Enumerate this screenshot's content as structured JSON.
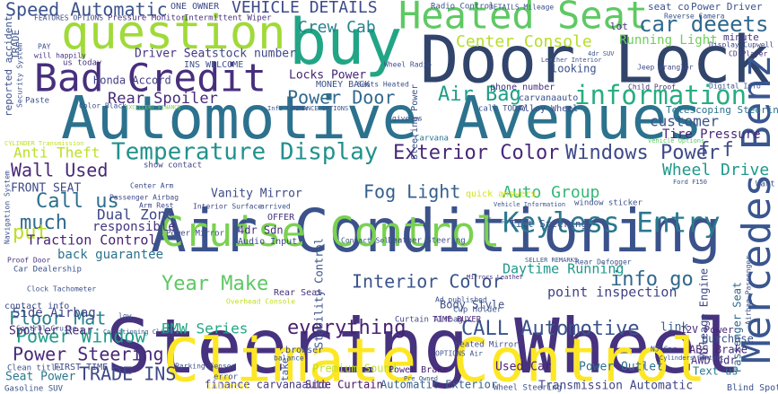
{
  "words": [
    "Steering Wheel",
    "Air Conditioning",
    "Automotive Avenues",
    "Climate Control",
    "Door Lock",
    "buy",
    "Heated Seat",
    "question",
    "Bad Credit",
    "Mercedes Benz",
    "Cruise Control",
    "Keyless Entry",
    "information",
    "Temperature Display",
    "Exterior Color",
    "Windows Power",
    "Center Console",
    "car deeets",
    "Speed Automatic",
    "VEHICLE DETAILS",
    "Crew Cab",
    "Running Light",
    "Air Bag",
    "Power Door",
    "Rear Spoiler",
    "Honda Accord",
    "Driver Seat",
    "stock number",
    "Locks Power",
    "Wall Used",
    "Anti Theft",
    "Call us",
    "much",
    "put",
    "Dual Zone",
    "responsible",
    "Traction Control",
    "back guarantee",
    "Year Make",
    "Interior Color",
    "info go",
    "Daytime Running",
    "point inspection",
    "everything",
    "CALL Automotive",
    "Floor Mat",
    "Power Window",
    "Power Steering",
    "TRADE INS",
    "BMW Series",
    "Fog Light",
    "Auto Group",
    "Wheel Drive",
    "Vanity Mirror",
    "Used Car",
    "Power Outlet",
    "Transmission Automatic",
    "Automatic Exterior",
    "Side Curtain",
    "finance carvanaauto",
    "Premium Sound",
    "Power Brake",
    "Body Style",
    "Tilt Steering",
    "Telescoping Steering",
    "customer",
    "Tire Pressure",
    "f f",
    "Side Airbag",
    "Seat Power",
    "Spoiler Rear",
    "Passenger Seat",
    "Mileage Engine",
    "link",
    "12V Power",
    "AWD 4dr",
    "Text us",
    "ABS Brake",
    "purchase",
    "Audio Input",
    "4dr Sdn",
    "OFFER",
    "Stability Control",
    "Steering Power",
    "Curtain Airbag",
    "TIME BUYER",
    "Cup Holder",
    "Heated Mirror",
    "show contact",
    "ONE OWNER",
    "Pressure Monitor",
    "Intermittent Wiper",
    "minute",
    "Power Driver",
    "seat co",
    "lot",
    "looking",
    "phone number",
    "carvanaauto",
    "Alloy Wheel",
    "call TODAY",
    "Carvana",
    "FRONT SEAT",
    "Rear Seat",
    "browser",
    "contact info",
    "FIRST TIME",
    "Clean title",
    "Gasoline SUV",
    "TRADE",
    "Arm Rest",
    "Passenger Airbag",
    "Center Arm",
    "Power Mirror",
    "Child Proof",
    "Digital Info",
    "CD Player",
    "Display Cupwell",
    "Interior Surface",
    "arrived",
    "MONEY BACK",
    "Seats Heated",
    "Info Center",
    "FINANCE OPTIONS",
    "give us",
    "INS WELCOME",
    "us today",
    "will happily",
    "PAY",
    "FEATURES OPTIONS",
    "Paste",
    "Color Black",
    "EXCELLENT FINANCE",
    "Wheel Radio",
    "DETAILS Mileage",
    "Radio Control",
    "Reverse Camera",
    "Leather Interior",
    "4dr SUV",
    "Jeep Wrangler",
    "reported accident",
    "Security System",
    "Navigation System",
    "Car Dealership",
    "Proof Door",
    "Clock Tachometer",
    "Conditioning Climate",
    "low",
    "Overhead Console",
    "Leather Steering",
    "Contact Seller",
    "quick answers",
    "window sticker",
    "Vehicle Information",
    "Cars Used",
    "Rear Defogger",
    "SELLER REMARKS",
    "Mirrors Leather",
    "Ad published",
    "OPTIONS Air",
    "Pre Owned",
    "Parking Sensor",
    "error",
    "interest",
    "take",
    "balance",
    "Control Cruise",
    "NJ Car",
    "Cylinders Contact",
    "Blind Spot",
    "Wheel Steering",
    "Want",
    "Ford F150",
    "Vehicle Options",
    "CYLINDER Transmission",
    "Airbag Passenger"
  ]
}
